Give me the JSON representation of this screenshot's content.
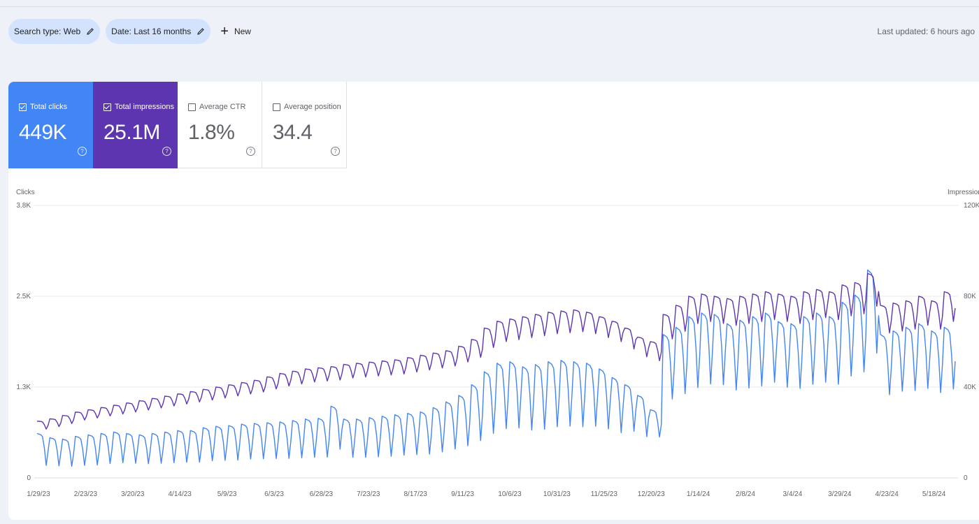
{
  "filters": {
    "search_type": "Search type: Web",
    "date": "Date: Last 16 months",
    "new_label": "New"
  },
  "last_updated": "Last updated: 6 hours ago",
  "metrics": [
    {
      "label": "Total clicks",
      "value": "449K",
      "checked": true
    },
    {
      "label": "Total impressions",
      "value": "25.1M",
      "checked": true
    },
    {
      "label": "Average CTR",
      "value": "1.8%",
      "checked": false
    },
    {
      "label": "Average position",
      "value": "34.4",
      "checked": false
    }
  ],
  "colors": {
    "clicks": "#4285f4",
    "impressions": "#5e35b1",
    "grid": "#e8eaed"
  },
  "chart_data": {
    "type": "line",
    "left_axis": {
      "title": "Clicks",
      "ticks": [
        "3.8K",
        "2.5K",
        "1.3K",
        "0"
      ],
      "ylim": [
        0,
        3800
      ]
    },
    "right_axis": {
      "title": "Impressions",
      "ticks": [
        "120K",
        "80K",
        "40K",
        "0"
      ],
      "ylim": [
        0,
        120000
      ]
    },
    "x_labels": [
      "1/29/23",
      "2/23/23",
      "3/20/23",
      "4/14/23",
      "5/9/23",
      "6/3/23",
      "6/28/23",
      "7/23/23",
      "8/17/23",
      "9/11/23",
      "10/6/23",
      "10/31/23",
      "11/25/23",
      "12/20/23",
      "1/14/24",
      "2/8/24",
      "3/4/24",
      "3/29/24",
      "4/23/24",
      "5/18/24"
    ],
    "x_range": [
      "1/29/23",
      "5/28/24"
    ],
    "grid": true,
    "series": [
      {
        "name": "Clicks",
        "axis": "left",
        "weekly": [
          [
            620,
            0.28
          ],
          [
            560,
            0.3
          ],
          [
            540,
            0.3
          ],
          [
            580,
            0.3
          ],
          [
            600,
            0.3
          ],
          [
            620,
            0.32
          ],
          [
            640,
            0.33
          ],
          [
            620,
            0.33
          ],
          [
            600,
            0.33
          ],
          [
            620,
            0.33
          ],
          [
            640,
            0.33
          ],
          [
            660,
            0.33
          ],
          [
            660,
            0.33
          ],
          [
            700,
            0.34
          ],
          [
            720,
            0.34
          ],
          [
            730,
            0.34
          ],
          [
            750,
            0.35
          ],
          [
            760,
            0.35
          ],
          [
            770,
            0.35
          ],
          [
            780,
            0.35
          ],
          [
            800,
            0.35
          ],
          [
            820,
            0.35
          ],
          [
            830,
            0.35
          ],
          [
            1000,
            0.4
          ],
          [
            820,
            0.35
          ],
          [
            820,
            0.35
          ],
          [
            840,
            0.35
          ],
          [
            860,
            0.35
          ],
          [
            880,
            0.36
          ],
          [
            900,
            0.36
          ],
          [
            920,
            0.36
          ],
          [
            980,
            0.37
          ],
          [
            1060,
            0.38
          ],
          [
            1150,
            0.39
          ],
          [
            1300,
            0.4
          ],
          [
            1480,
            0.42
          ],
          [
            1600,
            0.43
          ],
          [
            1620,
            0.43
          ],
          [
            1550,
            0.43
          ],
          [
            1580,
            0.43
          ],
          [
            1620,
            0.44
          ],
          [
            1640,
            0.44
          ],
          [
            1620,
            0.44
          ],
          [
            1600,
            0.45
          ],
          [
            1520,
            0.45
          ],
          [
            1400,
            0.45
          ],
          [
            1300,
            0.5
          ],
          [
            1150,
            0.5
          ],
          [
            950,
            0.6
          ],
          [
            2000,
            0.55
          ],
          [
            2100,
            0.56
          ],
          [
            2250,
            0.56
          ],
          [
            2300,
            0.57
          ],
          [
            2280,
            0.57
          ],
          [
            2150,
            0.57
          ],
          [
            2200,
            0.57
          ],
          [
            2250,
            0.57
          ],
          [
            2300,
            0.58
          ],
          [
            2180,
            0.58
          ],
          [
            2150,
            0.58
          ],
          [
            2250,
            0.58
          ],
          [
            2300,
            0.58
          ],
          [
            2250,
            0.58
          ],
          [
            2450,
            0.58
          ],
          [
            2550,
            0.58
          ],
          [
            2900,
            0.6
          ],
          [
            2000,
            0.58
          ],
          [
            2050,
            0.59
          ],
          [
            2100,
            0.58
          ],
          [
            2150,
            0.58
          ],
          [
            2050,
            0.58
          ],
          [
            2100,
            0.59
          ]
        ]
      },
      {
        "name": "Impressions",
        "axis": "right",
        "weekly": [
          [
            25000,
            0.86
          ],
          [
            26000,
            0.87
          ],
          [
            27500,
            0.87
          ],
          [
            29000,
            0.88
          ],
          [
            30000,
            0.88
          ],
          [
            31000,
            0.88
          ],
          [
            32000,
            0.88
          ],
          [
            33000,
            0.88
          ],
          [
            34000,
            0.88
          ],
          [
            35000,
            0.88
          ],
          [
            36000,
            0.88
          ],
          [
            37000,
            0.88
          ],
          [
            38000,
            0.88
          ],
          [
            39000,
            0.88
          ],
          [
            40000,
            0.88
          ],
          [
            41000,
            0.88
          ],
          [
            42000,
            0.88
          ],
          [
            43000,
            0.88
          ],
          [
            44500,
            0.88
          ],
          [
            46000,
            0.88
          ],
          [
            47000,
            0.88
          ],
          [
            48000,
            0.88
          ],
          [
            48500,
            0.88
          ],
          [
            49000,
            0.88
          ],
          [
            50000,
            0.88
          ],
          [
            50500,
            0.88
          ],
          [
            51000,
            0.88
          ],
          [
            51500,
            0.88
          ],
          [
            52000,
            0.88
          ],
          [
            53000,
            0.88
          ],
          [
            54000,
            0.88
          ],
          [
            55000,
            0.88
          ],
          [
            56000,
            0.88
          ],
          [
            58000,
            0.88
          ],
          [
            61000,
            0.87
          ],
          [
            66000,
            0.87
          ],
          [
            69000,
            0.87
          ],
          [
            70000,
            0.87
          ],
          [
            71000,
            0.87
          ],
          [
            72000,
            0.87
          ],
          [
            73000,
            0.87
          ],
          [
            73500,
            0.87
          ],
          [
            74000,
            0.87
          ],
          [
            73000,
            0.87
          ],
          [
            71000,
            0.87
          ],
          [
            69000,
            0.87
          ],
          [
            66000,
            0.86
          ],
          [
            62000,
            0.86
          ],
          [
            60000,
            0.86
          ],
          [
            72000,
            0.85
          ],
          [
            76000,
            0.85
          ],
          [
            80000,
            0.85
          ],
          [
            81000,
            0.85
          ],
          [
            80000,
            0.85
          ],
          [
            79000,
            0.85
          ],
          [
            80000,
            0.85
          ],
          [
            81000,
            0.85
          ],
          [
            82000,
            0.85
          ],
          [
            81000,
            0.85
          ],
          [
            80000,
            0.85
          ],
          [
            82000,
            0.85
          ],
          [
            83000,
            0.85
          ],
          [
            82000,
            0.85
          ],
          [
            85000,
            0.84
          ],
          [
            86000,
            0.84
          ],
          [
            90000,
            0.84
          ],
          [
            76000,
            0.84
          ],
          [
            77000,
            0.84
          ],
          [
            78000,
            0.84
          ],
          [
            80000,
            0.84
          ],
          [
            78000,
            0.84
          ],
          [
            82000,
            0.84
          ]
        ]
      }
    ]
  }
}
